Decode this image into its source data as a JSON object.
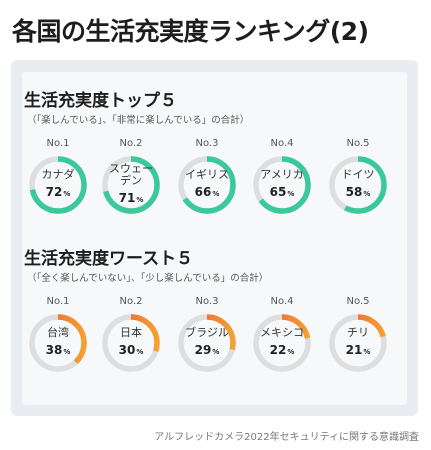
{
  "title": "各国の生活充実度ランキング(2)",
  "colors": {
    "top_ring": "#3cc99a",
    "worst_ring": "#f5a034",
    "worst_ring_end": "#e8503c",
    "track": "#dedede"
  },
  "sections": [
    {
      "title": "生活充実度トップ５",
      "note": "（「楽しんでいる」、「非常に楽しんでいる」の合計）",
      "items": [
        {
          "rank": "No.1",
          "country": "カナダ",
          "percent_value": 72,
          "percent": "72",
          "unit": "%"
        },
        {
          "rank": "No.2",
          "country": "スウェー\nデン",
          "percent_value": 71,
          "percent": "71",
          "unit": "%"
        },
        {
          "rank": "No.3",
          "country": "イギリス",
          "percent_value": 66,
          "percent": "66",
          "unit": "%"
        },
        {
          "rank": "No.4",
          "country": "アメリカ",
          "percent_value": 65,
          "percent": "65",
          "unit": "%"
        },
        {
          "rank": "No.5",
          "country": "ドイツ",
          "percent_value": 58,
          "percent": "58",
          "unit": "%"
        }
      ]
    },
    {
      "title": "生活充実度ワースト５",
      "note": "（「全く楽しんでいない」、「少し楽しんでいる」の合計）",
      "items": [
        {
          "rank": "No.1",
          "country": "台湾",
          "percent_value": 38,
          "percent": "38",
          "unit": "%"
        },
        {
          "rank": "No.2",
          "country": "日本",
          "percent_value": 30,
          "percent": "30",
          "unit": "%"
        },
        {
          "rank": "No.3",
          "country": "ブラジル",
          "percent_value": 29,
          "percent": "29",
          "unit": "%"
        },
        {
          "rank": "No.4",
          "country": "メキシコ",
          "percent_value": 22,
          "percent": "22",
          "unit": "%"
        },
        {
          "rank": "No.5",
          "country": "チリ",
          "percent_value": 21,
          "percent": "21",
          "unit": "%"
        }
      ]
    }
  ],
  "footer": "アルフレッドカメラ2022年セキュリティに関する意識調査",
  "chart_data": {
    "type": "donut",
    "title": "各国の生活充実度ランキング(2)",
    "groups": [
      {
        "name": "生活充実度トップ５",
        "categories": [
          "カナダ",
          "スウェーデン",
          "イギリス",
          "アメリカ",
          "ドイツ"
        ],
        "values": [
          72,
          71,
          66,
          65,
          58
        ],
        "unit": "%"
      },
      {
        "name": "生活充実度ワースト５",
        "categories": [
          "台湾",
          "日本",
          "ブラジル",
          "メキシコ",
          "チリ"
        ],
        "values": [
          38,
          30,
          29,
          22,
          21
        ],
        "unit": "%"
      }
    ]
  }
}
